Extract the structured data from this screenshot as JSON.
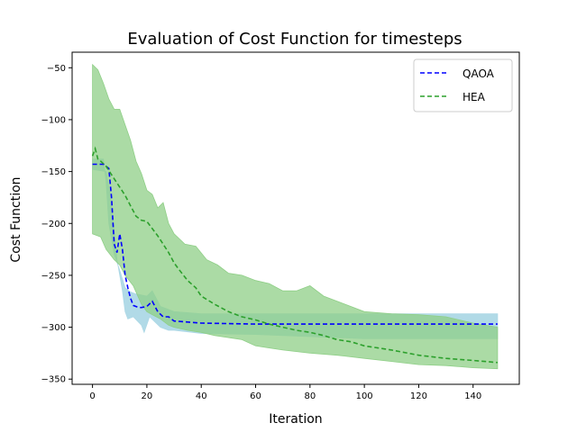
{
  "chart_data": {
    "type": "line",
    "title": "Evaluation of Cost Function for timesteps",
    "xlabel": "Iteration",
    "ylabel": "Cost Function",
    "xlim": [
      -7.5,
      157
    ],
    "ylim": [
      -355,
      -35
    ],
    "x_ticks": [
      0,
      20,
      40,
      60,
      80,
      100,
      120,
      140
    ],
    "y_ticks": [
      -50,
      -100,
      -150,
      -200,
      -250,
      -300,
      -350
    ],
    "grid": false,
    "legend": {
      "placement": "top-right",
      "entries": [
        "QAOA",
        "HEA"
      ]
    },
    "series": [
      {
        "name": "QAOA",
        "color": "#0000ff",
        "line_style": "dashed",
        "band_color": "#add8e6",
        "mean": [
          [
            0,
            -143
          ],
          [
            4,
            -143
          ],
          [
            6,
            -147
          ],
          [
            7,
            -175
          ],
          [
            8,
            -220
          ],
          [
            9,
            -228
          ],
          [
            10,
            -210
          ],
          [
            11,
            -225
          ],
          [
            12,
            -250
          ],
          [
            13,
            -262
          ],
          [
            14,
            -272
          ],
          [
            15,
            -279
          ],
          [
            17,
            -281
          ],
          [
            18,
            -281
          ],
          [
            20,
            -280
          ],
          [
            22,
            -275
          ],
          [
            24,
            -285
          ],
          [
            26,
            -290
          ],
          [
            28,
            -290
          ],
          [
            30,
            -294
          ],
          [
            35,
            -295
          ],
          [
            40,
            -296
          ],
          [
            60,
            -297
          ],
          [
            100,
            -297
          ],
          [
            149,
            -297
          ]
        ],
        "band_upper": [
          [
            0,
            -138
          ],
          [
            4,
            -138
          ],
          [
            5,
            -160
          ],
          [
            6,
            -200
          ],
          [
            8,
            -230
          ],
          [
            10,
            -245
          ],
          [
            12,
            -262
          ],
          [
            14,
            -266
          ],
          [
            16,
            -268
          ],
          [
            20,
            -270
          ],
          [
            22,
            -265
          ],
          [
            25,
            -280
          ],
          [
            30,
            -285
          ],
          [
            40,
            -287
          ],
          [
            60,
            -287
          ],
          [
            80,
            -287
          ],
          [
            100,
            -287
          ],
          [
            149,
            -287
          ]
        ],
        "band_lower": [
          [
            0,
            -148
          ],
          [
            5,
            -150
          ],
          [
            7,
            -180
          ],
          [
            9,
            -235
          ],
          [
            11,
            -265
          ],
          [
            12,
            -285
          ],
          [
            13,
            -292
          ],
          [
            15,
            -290
          ],
          [
            18,
            -298
          ],
          [
            19,
            -305
          ],
          [
            21,
            -290
          ],
          [
            25,
            -300
          ],
          [
            28,
            -303
          ],
          [
            30,
            -303
          ],
          [
            40,
            -306
          ],
          [
            60,
            -307
          ],
          [
            100,
            -311
          ],
          [
            149,
            -311
          ]
        ]
      },
      {
        "name": "HEA",
        "color": "#2ca02c",
        "line_style": "dashed",
        "band_color": "#8fcf87",
        "mean": [
          [
            0,
            -135
          ],
          [
            1,
            -128
          ],
          [
            2,
            -138
          ],
          [
            3,
            -140
          ],
          [
            5,
            -145
          ],
          [
            8,
            -157
          ],
          [
            10,
            -165
          ],
          [
            12,
            -173
          ],
          [
            14,
            -183
          ],
          [
            16,
            -193
          ],
          [
            18,
            -197
          ],
          [
            20,
            -198
          ],
          [
            22,
            -205
          ],
          [
            24,
            -212
          ],
          [
            26,
            -220
          ],
          [
            28,
            -228
          ],
          [
            30,
            -238
          ],
          [
            32,
            -245
          ],
          [
            35,
            -255
          ],
          [
            38,
            -262
          ],
          [
            40,
            -270
          ],
          [
            45,
            -278
          ],
          [
            50,
            -285
          ],
          [
            55,
            -290
          ],
          [
            60,
            -293
          ],
          [
            65,
            -297
          ],
          [
            70,
            -300
          ],
          [
            75,
            -303
          ],
          [
            80,
            -305
          ],
          [
            85,
            -308
          ],
          [
            90,
            -312
          ],
          [
            95,
            -314
          ],
          [
            100,
            -318
          ],
          [
            105,
            -320
          ],
          [
            110,
            -322
          ],
          [
            120,
            -327
          ],
          [
            130,
            -330
          ],
          [
            140,
            -332
          ],
          [
            149,
            -334
          ]
        ],
        "band_upper": [
          [
            0,
            -47
          ],
          [
            2,
            -52
          ],
          [
            4,
            -65
          ],
          [
            6,
            -80
          ],
          [
            8,
            -90
          ],
          [
            10,
            -90
          ],
          [
            12,
            -105
          ],
          [
            14,
            -120
          ],
          [
            16,
            -140
          ],
          [
            18,
            -152
          ],
          [
            20,
            -168
          ],
          [
            22,
            -172
          ],
          [
            24,
            -185
          ],
          [
            26,
            -180
          ],
          [
            28,
            -200
          ],
          [
            30,
            -210
          ],
          [
            34,
            -220
          ],
          [
            38,
            -222
          ],
          [
            42,
            -235
          ],
          [
            46,
            -240
          ],
          [
            50,
            -248
          ],
          [
            55,
            -250
          ],
          [
            60,
            -255
          ],
          [
            65,
            -258
          ],
          [
            70,
            -265
          ],
          [
            75,
            -265
          ],
          [
            80,
            -260
          ],
          [
            85,
            -270
          ],
          [
            90,
            -275
          ],
          [
            95,
            -280
          ],
          [
            100,
            -285
          ],
          [
            110,
            -287
          ],
          [
            120,
            -288
          ],
          [
            130,
            -290
          ],
          [
            140,
            -296
          ],
          [
            149,
            -300
          ]
        ],
        "band_lower": [
          [
            0,
            -210
          ],
          [
            3,
            -213
          ],
          [
            5,
            -225
          ],
          [
            8,
            -235
          ],
          [
            10,
            -240
          ],
          [
            12,
            -250
          ],
          [
            15,
            -260
          ],
          [
            18,
            -278
          ],
          [
            20,
            -285
          ],
          [
            22,
            -288
          ],
          [
            25,
            -292
          ],
          [
            28,
            -298
          ],
          [
            30,
            -300
          ],
          [
            35,
            -303
          ],
          [
            40,
            -305
          ],
          [
            45,
            -308
          ],
          [
            50,
            -310
          ],
          [
            55,
            -312
          ],
          [
            60,
            -318
          ],
          [
            65,
            -320
          ],
          [
            70,
            -322
          ],
          [
            80,
            -325
          ],
          [
            90,
            -327
          ],
          [
            100,
            -330
          ],
          [
            110,
            -333
          ],
          [
            120,
            -336
          ],
          [
            130,
            -337
          ],
          [
            140,
            -339
          ],
          [
            149,
            -340
          ]
        ]
      }
    ]
  }
}
